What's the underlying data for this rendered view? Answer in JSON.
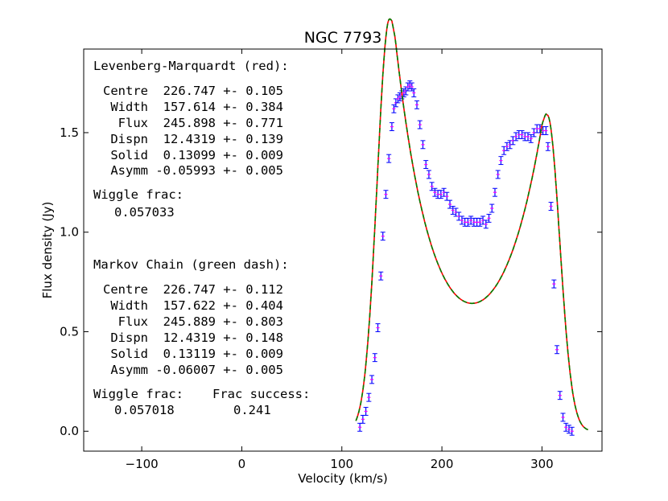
{
  "chart_data": {
    "type": "line",
    "title": "NGC 7793",
    "xlabel": "Velocity (km/s)",
    "ylabel": "Flux density (Jy)",
    "xlim": [
      -158,
      360
    ],
    "ylim": [
      -0.1,
      1.92
    ],
    "xticks": [
      -100,
      0,
      100,
      200,
      300
    ],
    "xtick_labels": [
      "−100",
      "0",
      "100",
      "200",
      "300"
    ],
    "yticks": [
      0.0,
      0.5,
      1.0,
      1.5
    ],
    "ytick_labels": [
      "0.0",
      "0.5",
      "1.0",
      "1.5"
    ],
    "grid": false,
    "model": {
      "centre": 226.747,
      "width": 157.614,
      "dispn": 12.4319,
      "solid": 0.13099,
      "asymm": -0.05993,
      "x_range": [
        114,
        346
      ]
    },
    "series": [
      {
        "name": "data (error bars)",
        "style": "errorbar",
        "color": "#0000ff",
        "cap_color": "#ff00ff",
        "yerr": 0.02,
        "x": [
          118,
          121,
          124,
          127,
          130,
          133,
          136,
          139,
          141,
          144,
          147,
          150,
          152,
          154,
          156,
          158,
          160,
          162,
          164,
          166,
          168,
          170,
          172,
          175,
          178,
          181,
          184,
          187,
          190,
          193,
          196,
          199,
          202,
          205,
          208,
          211,
          214,
          217,
          220,
          223,
          226,
          229,
          232,
          235,
          238,
          241,
          244,
          247,
          250,
          253,
          256,
          259,
          262,
          265,
          268,
          271,
          274,
          277,
          280,
          283,
          286,
          289,
          292,
          295,
          298,
          301,
          304,
          306,
          309,
          312,
          315,
          318,
          321,
          324,
          327,
          330
        ],
        "y": [
          0.02,
          0.06,
          0.1,
          0.17,
          0.26,
          0.37,
          0.52,
          0.78,
          0.98,
          1.19,
          1.37,
          1.53,
          1.62,
          1.65,
          1.67,
          1.68,
          1.69,
          1.7,
          1.71,
          1.73,
          1.74,
          1.73,
          1.7,
          1.64,
          1.54,
          1.44,
          1.34,
          1.29,
          1.23,
          1.2,
          1.19,
          1.19,
          1.2,
          1.18,
          1.14,
          1.11,
          1.1,
          1.08,
          1.06,
          1.05,
          1.05,
          1.06,
          1.05,
          1.05,
          1.05,
          1.06,
          1.04,
          1.07,
          1.12,
          1.2,
          1.29,
          1.36,
          1.41,
          1.43,
          1.44,
          1.46,
          1.48,
          1.49,
          1.49,
          1.48,
          1.48,
          1.47,
          1.5,
          1.52,
          1.52,
          1.51,
          1.51,
          1.43,
          1.13,
          0.74,
          0.41,
          0.18,
          0.07,
          0.02,
          0.01,
          0.0
        ]
      },
      {
        "name": "Levenberg-Marquardt fit",
        "style": "solid",
        "color": "#ff0000"
      },
      {
        "name": "Markov Chain fit",
        "style": "dashed",
        "color": "#008000"
      }
    ],
    "annotations": {
      "lm_header": "Levenberg-Marquardt (red):",
      "lm_rows": [
        "Centre  226.747 +- 0.105",
        " Width  157.614 +- 0.384",
        "  Flux  245.898 +- 0.771",
        " Dispn  12.4319 +- 0.139",
        " Solid  0.13099 +- 0.009",
        " Asymm -0.05993 +- 0.005"
      ],
      "lm_wiggle_label": "Wiggle frac:",
      "lm_wiggle_value": "0.057033",
      "mc_header": "Markov Chain (green dash):",
      "mc_rows": [
        "Centre  226.747 +- 0.112",
        " Width  157.622 +- 0.404",
        "  Flux  245.889 +- 0.803",
        " Dispn  12.4319 +- 0.148",
        " Solid  0.13119 +- 0.009",
        " Asymm -0.06007 +- 0.005"
      ],
      "mc_wiggle_label": "Wiggle frac:",
      "mc_wiggle_value": "0.057018",
      "frac_success_label": "Frac success:",
      "frac_success_value": "0.241"
    }
  }
}
